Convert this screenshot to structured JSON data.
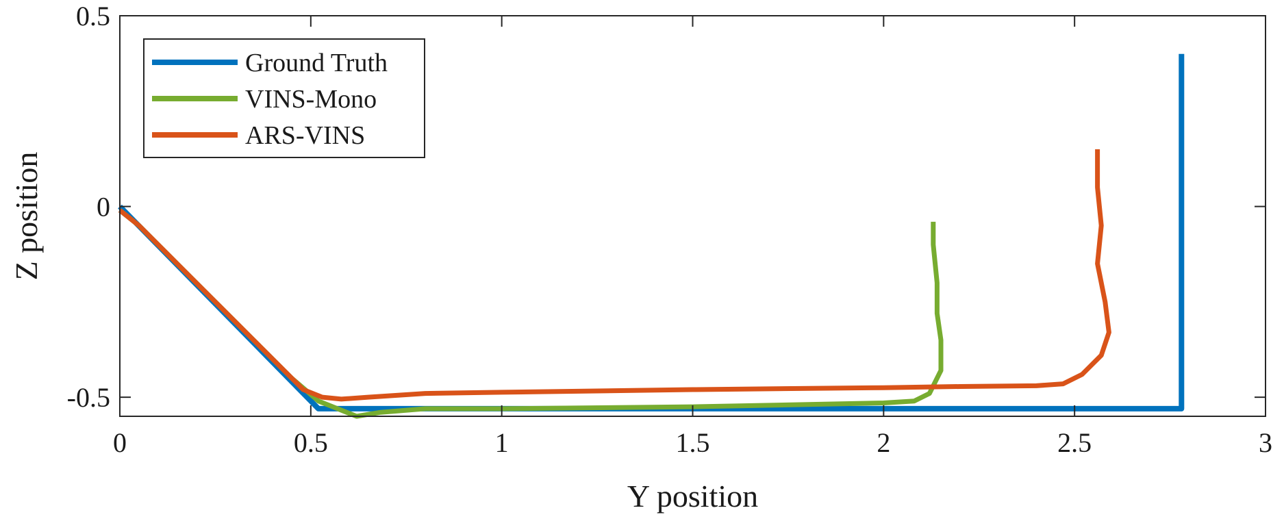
{
  "chart_data": {
    "type": "line",
    "title": "",
    "xlabel": "Y position",
    "ylabel": "Z position",
    "xlim": [
      0,
      3
    ],
    "ylim": [
      -0.55,
      0.5
    ],
    "xticks": [
      0,
      0.5,
      1,
      1.5,
      2,
      2.5,
      3
    ],
    "xtick_labels": [
      "0",
      "0.5",
      "1",
      "1.5",
      "2",
      "2.5",
      "3"
    ],
    "yticks": [
      -0.5,
      0,
      0.5
    ],
    "ytick_labels": [
      "-0.5",
      "0",
      "0.5"
    ],
    "grid": false,
    "legend_position": "top-left",
    "series": [
      {
        "name": "Ground Truth",
        "color": "#0072BD",
        "x": [
          0,
          0.52,
          2.78,
          2.78
        ],
        "y": [
          0,
          -0.53,
          -0.53,
          0.4
        ]
      },
      {
        "name": "VINS-Mono",
        "color": "#77AC30",
        "x": [
          0,
          0.05,
          0.15,
          0.3,
          0.45,
          0.52,
          0.57,
          0.62,
          0.68,
          0.8,
          1.0,
          1.5,
          2.0,
          2.08,
          2.12,
          2.15,
          2.15,
          2.14,
          2.14,
          2.13,
          2.13
        ],
        "y": [
          -0.01,
          -0.05,
          -0.15,
          -0.3,
          -0.45,
          -0.51,
          -0.53,
          -0.55,
          -0.54,
          -0.53,
          -0.53,
          -0.525,
          -0.515,
          -0.51,
          -0.49,
          -0.43,
          -0.35,
          -0.28,
          -0.2,
          -0.1,
          -0.04
        ]
      },
      {
        "name": "ARS-VINS",
        "color": "#D95319",
        "x": [
          0,
          0.05,
          0.2,
          0.35,
          0.48,
          0.53,
          0.58,
          0.65,
          0.8,
          1.0,
          1.5,
          2.0,
          2.2,
          2.4,
          2.47,
          2.52,
          2.57,
          2.59,
          2.58,
          2.56,
          2.57,
          2.56,
          2.56
        ],
        "y": [
          -0.01,
          -0.05,
          -0.2,
          -0.35,
          -0.48,
          -0.5,
          -0.505,
          -0.5,
          -0.49,
          -0.487,
          -0.48,
          -0.475,
          -0.472,
          -0.47,
          -0.465,
          -0.44,
          -0.39,
          -0.33,
          -0.25,
          -0.15,
          -0.05,
          0.05,
          0.15
        ]
      }
    ]
  }
}
